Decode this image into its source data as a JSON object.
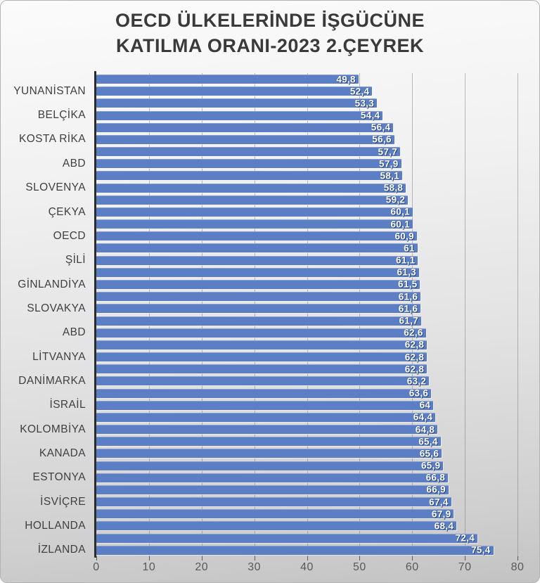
{
  "title": {
    "line1": "OECD ÜLKELERİNDE İŞGÜCÜNE",
    "line2": "KATILMA ORANI-2023 2.ÇEYREK"
  },
  "chart_data": {
    "type": "bar",
    "orientation": "horizontal",
    "title": "OECD ÜLKELERİNDE İŞGÜCÜNE KATILMA ORANI-2023 2.ÇEYREK",
    "xlabel": "",
    "ylabel": "",
    "xlim": [
      0,
      80
    ],
    "x_ticks": [
      0,
      10,
      20,
      30,
      40,
      50,
      60,
      70,
      80
    ],
    "grid": true,
    "legend": false,
    "values": [
      49.8,
      52.4,
      53.3,
      54.4,
      56.4,
      56.6,
      57.7,
      57.9,
      58.1,
      58.8,
      59.2,
      60.1,
      60.1,
      60.9,
      61,
      61.1,
      61.3,
      61.5,
      61.6,
      61.6,
      61.7,
      62.6,
      62.8,
      62.8,
      62.8,
      63.2,
      63.6,
      64,
      64.4,
      64.8,
      65.4,
      65.6,
      65.9,
      66.8,
      66.9,
      67.4,
      67.9,
      68.4,
      72.4,
      75.4
    ],
    "value_labels": [
      "49,8",
      "52,4",
      "53,3",
      "54,4",
      "56,4",
      "56,6",
      "57,7",
      "57,9",
      "58,1",
      "58,8",
      "59,2",
      "60,1",
      "60,1",
      "60,9",
      "61",
      "61,1",
      "61,3",
      "61,5",
      "61,6",
      "61,6",
      "61,7",
      "62,6",
      "62,8",
      "62,8",
      "62,8",
      "63,2",
      "63,6",
      "64",
      "64,4",
      "64,8",
      "65,4",
      "65,6",
      "65,9",
      "66,8",
      "66,9",
      "67,4",
      "67,9",
      "68,4",
      "72,4",
      "75,4"
    ],
    "category_labels": [
      "YUNANİSTAN",
      "BELÇİKA",
      "KOSTA RİKA",
      "ABD",
      "SLOVENYA",
      "ÇEKYA",
      "OECD",
      "ŞİLİ",
      "GİNLANDİYA",
      "SLOVAKYA",
      "ABD",
      "LİTVANYA",
      "DANİMARKA",
      "İSRAİL",
      "KOLOMBİYA",
      "KANADA",
      "ESTONYA",
      "İSVİÇRE",
      "HOLLANDA",
      "İZLANDA"
    ],
    "category_label_interval": 2,
    "first_labeled_bar_index": 1,
    "colors": {
      "bar": "#5B7EC5",
      "value_text": "#FFFFFF",
      "value_text_shadow": "#2A4579",
      "axis_line": "#2B2B2B",
      "grid_line": "#6E6E6E",
      "category_text": "#3F3F3F",
      "tick_text": "#595959",
      "title_text": "#3A3A3A"
    }
  }
}
